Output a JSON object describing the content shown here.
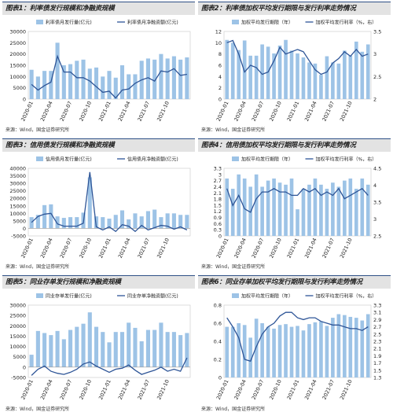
{
  "source_text": "来源：Wind，国金证券研究所",
  "x_labels": [
    "2020-01",
    "2020-04",
    "2020-07",
    "2020-10",
    "2021-01",
    "2021-04",
    "2021-07",
    "2021-10"
  ],
  "colors": {
    "bar": "#9dc3e6",
    "line": "#2e5597",
    "header_bg": "#e3e3e3",
    "header_border": "#2e4f86"
  },
  "chart_data": [
    {
      "panel_title": "图表1：利率债发行规模和净融资规模",
      "type": "bar+line",
      "categories_tick_labels": [
        "2020-01",
        "2020-04",
        "2020-07",
        "2020-10",
        "2021-01",
        "2021-04",
        "2021-07",
        "2021-10"
      ],
      "series": [
        {
          "name": "利率债月发行量(亿元)",
          "kind": "bar",
          "axis": "left",
          "values": [
            13000,
            10000,
            12500,
            12500,
            25000,
            15000,
            15500,
            17000,
            17500,
            13500,
            14000,
            10000,
            12500,
            9500,
            15000,
            11000,
            11000,
            17000,
            18000,
            17500,
            20000,
            18000,
            19000,
            17500,
            18500
          ]
        },
        {
          "name": "利率债月净融资额(亿元)",
          "kind": "line",
          "axis": "left",
          "values": [
            6500,
            4000,
            6000,
            7500,
            19000,
            12000,
            12000,
            9500,
            9500,
            8000,
            5500,
            3000,
            3500,
            500,
            4000,
            4500,
            7000,
            8500,
            9500,
            8000,
            12500,
            12000,
            13500,
            10500,
            11000
          ]
        }
      ],
      "left_axis": {
        "ylim": [
          0,
          30000
        ],
        "ticks": [
          0,
          5000,
          10000,
          15000,
          20000,
          25000,
          30000
        ]
      }
    },
    {
      "panel_title": "图表2：利率债加权平均发行期限与发行利率走势情况",
      "type": "bar+line",
      "categories_tick_labels": [
        "2020-01",
        "2020-04",
        "2020-07",
        "2020-10",
        "2021-01",
        "2021-04",
        "2021-07",
        "2021-10"
      ],
      "series": [
        {
          "name": "加权平均发行期限（年）",
          "kind": "bar",
          "axis": "left",
          "values": [
            10.5,
            10,
            8.7,
            10.4,
            7.7,
            7.7,
            9.7,
            9.3,
            8.1,
            9.5,
            10.5,
            8.6,
            8.1,
            7.4,
            6.5,
            6.3,
            4.3,
            7.6,
            6.5,
            6.3,
            8.6,
            7.7,
            10.2,
            8.4,
            9.7
          ]
        },
        {
          "name": "加权平均发行利率（%，右）",
          "kind": "line",
          "axis": "right",
          "values": [
            3.25,
            3.3,
            3.0,
            2.6,
            2.75,
            2.7,
            2.55,
            2.6,
            2.85,
            3.15,
            3.0,
            3.05,
            3.1,
            3.05,
            2.85,
            2.65,
            2.55,
            2.6,
            2.8,
            2.9,
            3.05,
            2.95,
            3.1,
            2.95,
            3.0
          ]
        }
      ],
      "left_axis": {
        "ylim": [
          0,
          12
        ],
        "ticks": [
          0,
          2,
          4,
          6,
          8,
          10,
          12
        ]
      },
      "right_axis": {
        "ylim": [
          2.0,
          3.5
        ],
        "ticks": [
          2.0,
          2.5,
          3.0,
          3.5
        ]
      }
    },
    {
      "panel_title": "图表3：信用债发行规模和净融资规模",
      "type": "bar+line",
      "categories_tick_labels": [
        "2020-01",
        "2020-04",
        "2020-07",
        "2020-10",
        "2021-01",
        "2021-04",
        "2021-07",
        "2021-10"
      ],
      "series": [
        {
          "name": "信用债月发行量(亿元)",
          "kind": "bar",
          "axis": "left",
          "values": [
            7500,
            9000,
            15500,
            16000,
            8000,
            7000,
            7500,
            7500,
            10500,
            34000,
            8000,
            7500,
            6500,
            9000,
            12000,
            6000,
            10000,
            8000,
            11500,
            12500,
            7500,
            10000,
            10000,
            9000,
            9000
          ]
        },
        {
          "name": "信用债月净融资额(亿元)",
          "kind": "line",
          "axis": "left",
          "values": [
            4000,
            8000,
            9500,
            10000,
            3000,
            1500,
            1500,
            1500,
            3500,
            37500,
            1000,
            -1000,
            1000,
            -2000,
            2500,
            1500,
            -2000,
            2000,
            -1000,
            500,
            2000,
            1500,
            -500,
            1000,
            -1000
          ]
        }
      ],
      "left_axis": {
        "ylim": [
          -5000,
          40000
        ],
        "ticks": [
          -5000,
          0,
          5000,
          10000,
          15000,
          20000,
          25000,
          30000,
          35000,
          40000
        ]
      }
    },
    {
      "panel_title": "图表4：信用债加权平均发行期限与发行利率走势情况",
      "type": "bar+line",
      "categories_tick_labels": [
        "2020-01",
        "2020-04",
        "2020-07",
        "2020-10",
        "2021-01",
        "2021-04",
        "2021-07",
        "2021-10"
      ],
      "series": [
        {
          "name": "加权平均发行期限（年）",
          "kind": "bar",
          "axis": "left",
          "values": [
            2.8,
            2.3,
            3.0,
            2.8,
            2.4,
            3.0,
            2.4,
            2.7,
            2.8,
            2.6,
            2.5,
            2.8,
            1.3,
            2.3,
            2.5,
            2.8,
            2.5,
            2.3,
            2.6,
            2.4,
            2.7,
            2.8,
            2.3,
            2.8,
            2.5
          ]
        },
        {
          "name": "加权平均发行利率（%，右）",
          "kind": "line",
          "axis": "right",
          "values": [
            3.9,
            3.4,
            3.7,
            3.3,
            3.2,
            3.6,
            3.8,
            3.8,
            3.9,
            3.8,
            3.8,
            3.7,
            3.7,
            3.9,
            3.8,
            3.9,
            3.7,
            3.8,
            3.7,
            3.9,
            3.6,
            3.7,
            3.8,
            3.9,
            3.7
          ]
        }
      ],
      "left_axis": {
        "ylim": [
          0,
          3.3
        ],
        "ticks": [
          0,
          0.3,
          0.6,
          0.9,
          1.2,
          1.5,
          1.8,
          2.1,
          2.4,
          2.7,
          3.0,
          3.3
        ]
      },
      "right_axis": {
        "ylim": [
          2.5,
          4.5
        ],
        "ticks": [
          2.5,
          3.0,
          3.5,
          4.0,
          4.5
        ]
      }
    },
    {
      "panel_title": "图表5：同业存单发行规模和净融资规模",
      "type": "bar+line",
      "categories_tick_labels": [
        "2020-01",
        "2020-04",
        "2020-07",
        "2020-10",
        "2021-01",
        "2021-04",
        "2021-07",
        "2021-10"
      ],
      "series": [
        {
          "name": "同业存单发行量(亿元)",
          "kind": "bar",
          "axis": "left",
          "values": [
            6000,
            17500,
            16500,
            15500,
            17500,
            13500,
            18000,
            19500,
            21000,
            26500,
            19500,
            17000,
            12000,
            17000,
            17000,
            21500,
            19000,
            12500,
            18000,
            18000,
            21500,
            17000,
            17000,
            15500,
            16500
          ]
        },
        {
          "name": "同业存单净融资额(亿元)",
          "kind": "line",
          "axis": "left",
          "values": [
            -4000,
            -1000,
            500,
            -2000,
            -3000,
            -3500,
            -2500,
            -1000,
            1500,
            2500,
            500,
            -1000,
            -2500,
            -1000,
            -500,
            1000,
            -1500,
            -3500,
            -2500,
            -1500,
            0,
            -2000,
            -1000,
            -2000,
            4500
          ]
        }
      ],
      "left_axis": {
        "ylim": [
          -5000,
          30000
        ],
        "ticks": [
          -5000,
          0,
          5000,
          10000,
          15000,
          20000,
          25000,
          30000
        ]
      }
    },
    {
      "panel_title": "图表6：同业存单加权平均发行期限与发行利率走势情况",
      "type": "bar+line",
      "categories_tick_labels": [
        "2020-01",
        "2020-04",
        "2020-07",
        "2020-10",
        "2021-01",
        "2021-04",
        "2021-07",
        "2021-10"
      ],
      "series": [
        {
          "name": "加权平均发行期限（年）",
          "kind": "bar",
          "axis": "left",
          "values": [
            0.56,
            0.56,
            0.6,
            0.58,
            0.44,
            0.65,
            0.6,
            0.56,
            0.54,
            0.58,
            0.59,
            0.56,
            0.57,
            0.52,
            0.59,
            0.61,
            0.62,
            0.57,
            0.66,
            0.7,
            0.69,
            0.67,
            0.66,
            0.63,
            0.7
          ]
        },
        {
          "name": "加权平均发行利率（%，右）",
          "kind": "line",
          "axis": "right",
          "values": [
            2.95,
            2.7,
            2.4,
            1.8,
            1.75,
            2.15,
            2.5,
            2.7,
            2.8,
            3.0,
            3.1,
            3.1,
            2.95,
            2.9,
            2.95,
            2.95,
            2.85,
            2.8,
            2.75,
            2.75,
            2.7,
            2.65,
            2.65,
            2.6,
            2.7
          ]
        }
      ],
      "left_axis": {
        "ylim": [
          0,
          0.8
        ],
        "ticks": [
          0,
          0.2,
          0.4,
          0.6,
          0.8
        ]
      },
      "right_axis": {
        "ylim": [
          1.3,
          3.3
        ],
        "ticks": [
          1.3,
          1.5,
          1.7,
          1.9,
          2.1,
          2.3,
          2.5,
          2.7,
          2.9,
          3.1,
          3.3
        ]
      }
    }
  ]
}
